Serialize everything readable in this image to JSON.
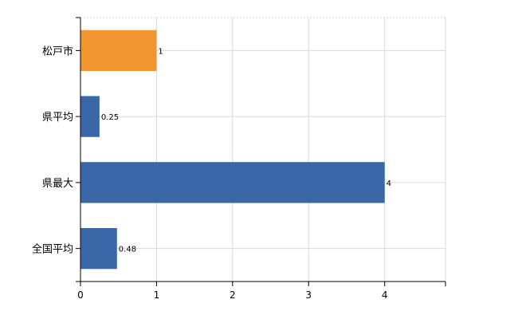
{
  "chart_data": {
    "type": "bar",
    "orientation": "horizontal",
    "categories": [
      "松戸市",
      "県平均",
      "県最大",
      "全国平均"
    ],
    "values": [
      1,
      0.25,
      4,
      0.48
    ],
    "value_labels": [
      "1",
      "0.25",
      "4",
      "0.48"
    ],
    "bar_colors": [
      "#f0952f",
      "#3a68a6",
      "#3a68a6",
      "#3a68a6"
    ],
    "xlim": [
      0,
      4.8
    ],
    "xticks": [
      0,
      1,
      2,
      3,
      4
    ],
    "grid": true,
    "title": "",
    "xlabel": "",
    "ylabel": ""
  }
}
